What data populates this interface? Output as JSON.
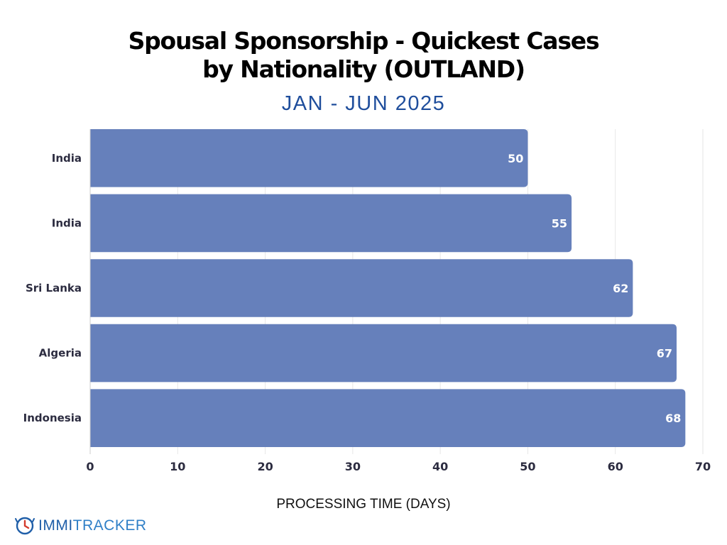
{
  "chart_data": {
    "type": "bar",
    "orientation": "horizontal",
    "title": "Spousal Sponsorship - Quickest Cases by Nationality (OUTLAND)",
    "subtitle": "JAN - JUN 2025",
    "categories": [
      "India",
      "India",
      "Sri Lanka",
      "Algeria",
      "Indonesia"
    ],
    "values": [
      50,
      55,
      62,
      67,
      68
    ],
    "xlabel": "PROCESSING TIME (DAYS)",
    "ylabel": "",
    "xlim": [
      0,
      70
    ],
    "xticks": [
      0,
      10,
      20,
      30,
      40,
      50,
      60,
      70
    ],
    "grid": true,
    "data_labels": true,
    "bar_color": "#6680bb"
  },
  "branding": {
    "logo_part1": "IMMI",
    "logo_part2": "TRACKER",
    "logo_icon": "clock-icon"
  },
  "colors": {
    "title": "#000000",
    "subtitle": "#1f4e9c",
    "grid": "#e6e6e6",
    "logo_primary": "#1f5ea8",
    "logo_accent": "#d33b2c"
  }
}
